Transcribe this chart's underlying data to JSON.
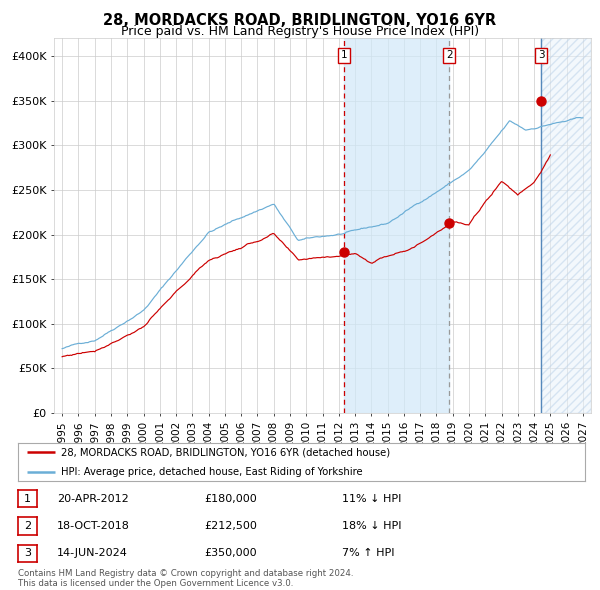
{
  "title": "28, MORDACKS ROAD, BRIDLINGTON, YO16 6YR",
  "subtitle": "Price paid vs. HM Land Registry's House Price Index (HPI)",
  "ylim": [
    0,
    420000
  ],
  "xlim_start": 1994.5,
  "xlim_end": 2027.5,
  "yticks": [
    0,
    50000,
    100000,
    150000,
    200000,
    250000,
    300000,
    350000,
    400000
  ],
  "ytick_labels": [
    "£0",
    "£50K",
    "£100K",
    "£150K",
    "£200K",
    "£250K",
    "£300K",
    "£350K",
    "£400K"
  ],
  "xticks": [
    1995,
    1996,
    1997,
    1998,
    1999,
    2000,
    2001,
    2002,
    2003,
    2004,
    2005,
    2006,
    2007,
    2008,
    2009,
    2010,
    2011,
    2012,
    2013,
    2014,
    2015,
    2016,
    2017,
    2018,
    2019,
    2020,
    2021,
    2022,
    2023,
    2024,
    2025,
    2026,
    2027
  ],
  "sale_dates": [
    2012.3,
    2018.79,
    2024.45
  ],
  "sale_prices": [
    180000,
    212500,
    350000
  ],
  "sale_labels": [
    "1",
    "2",
    "3"
  ],
  "hpi_color": "#6baed6",
  "price_color": "#cc0000",
  "shading_start": 2012.3,
  "shading_end": 2018.79,
  "future_shade_start": 2024.45,
  "legend_entries": [
    "28, MORDACKS ROAD, BRIDLINGTON, YO16 6YR (detached house)",
    "HPI: Average price, detached house, East Riding of Yorkshire"
  ],
  "table_rows": [
    {
      "num": "1",
      "date": "20-APR-2012",
      "price": "£180,000",
      "hpi": "11% ↓ HPI"
    },
    {
      "num": "2",
      "date": "18-OCT-2018",
      "price": "£212,500",
      "hpi": "18% ↓ HPI"
    },
    {
      "num": "3",
      "date": "14-JUN-2024",
      "price": "£350,000",
      "hpi": "7% ↑ HPI"
    }
  ],
  "footer": "Contains HM Land Registry data © Crown copyright and database right 2024.\nThis data is licensed under the Open Government Licence v3.0.",
  "bg_color": "#ffffff",
  "grid_color": "#cccccc"
}
